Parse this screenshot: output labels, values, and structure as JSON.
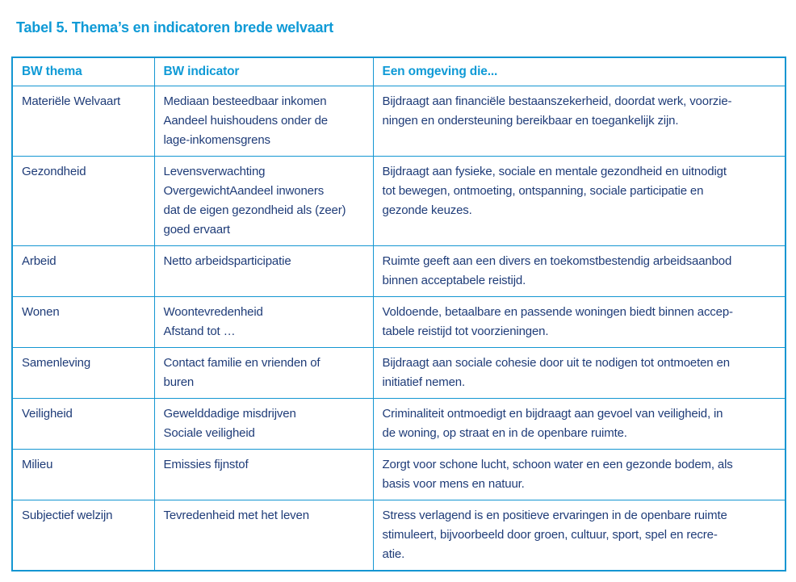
{
  "page": {
    "title": "Tabel 5. Thema’s en indicatoren brede welvaart"
  },
  "colors": {
    "accent": "#0f9ad6",
    "border": "#1496d2",
    "body_text": "#1f3c78",
    "background": "#ffffff"
  },
  "table": {
    "headers": [
      "BW thema",
      "BW indicator",
      "Een omgeving die..."
    ],
    "rows": [
      {
        "thema": "Materiële Welvaart",
        "indicator": "Mediaan besteedbaar inkomen\nAandeel huishoudens onder de\nlage-inkomensgrens",
        "omgeving": "Bijdraagt aan financiële bestaanszekerheid, doordat werk, voorzie-\nningen en ondersteuning bereikbaar en toegankelijk zijn."
      },
      {
        "thema": "Gezondheid",
        "indicator": "Levensverwachting\nOvergewichtAandeel inwoners\ndat de eigen gezondheid als (zeer)\ngoed ervaart",
        "omgeving": "Bijdraagt aan fysieke, sociale en mentale gezondheid en uitnodigt\ntot bewegen, ontmoeting, ontspanning, sociale participatie en\ngezonde keuzes."
      },
      {
        "thema": "Arbeid",
        "indicator": "Netto arbeidsparticipatie",
        "omgeving": "Ruimte geeft aan een divers en toekomstbestendig arbeidsaanbod\nbinnen acceptabele reistijd."
      },
      {
        "thema": "Wonen",
        "indicator": "Woontevredenheid\nAfstand tot …",
        "omgeving": "Voldoende, betaalbare en passende woningen biedt binnen accep-\ntabele reistijd tot voorzieningen."
      },
      {
        "thema": "Samenleving",
        "indicator": "Contact familie en vrienden of\nburen",
        "omgeving": "Bijdraagt aan sociale cohesie door uit te nodigen tot ontmoeten en\ninitiatief nemen."
      },
      {
        "thema": "Veiligheid",
        "indicator": "Gewelddadige misdrijven\nSociale veiligheid",
        "omgeving": "Criminaliteit ontmoedigt en bijdraagt aan gevoel van veiligheid, in\nde woning, op straat en in de openbare ruimte."
      },
      {
        "thema": "Milieu",
        "indicator": "Emissies fijnstof",
        "omgeving": "Zorgt voor schone lucht, schoon water en een gezonde bodem, als\nbasis voor mens en natuur."
      },
      {
        "thema": "Subjectief welzijn",
        "indicator": "Tevredenheid met het leven",
        "omgeving": "Stress verlagend is en positieve ervaringen in de openbare ruimte\nstimuleert, bijvoorbeeld door groen, cultuur, sport, spel en recre-\natie."
      }
    ]
  }
}
